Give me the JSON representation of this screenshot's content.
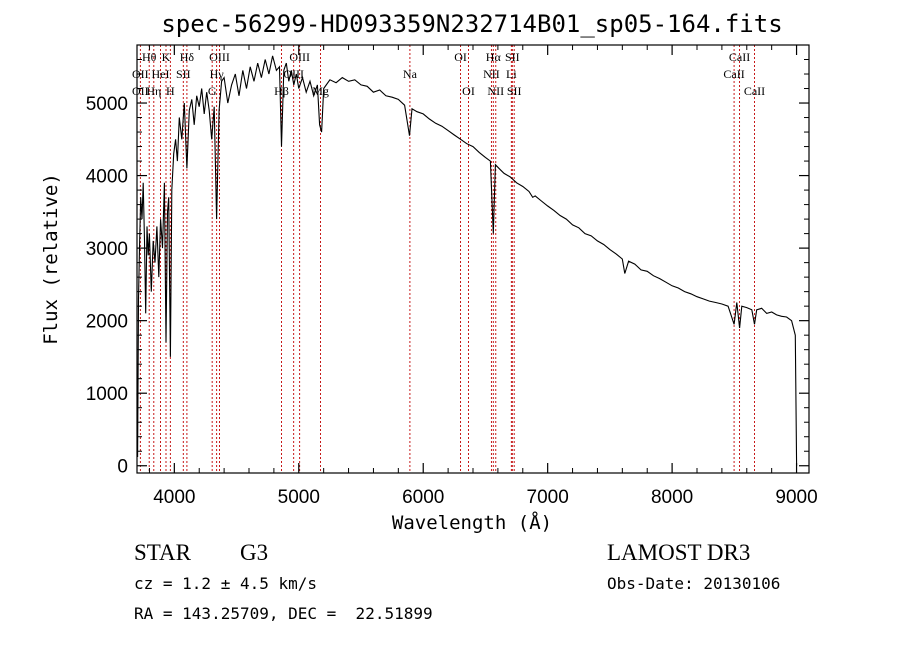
{
  "title": "spec-56299-HD093359N232714B01_sp05-164.fits",
  "colors": {
    "spectrum": "#000000",
    "line_markers": "#c00000",
    "axes": "#000000",
    "background": "#ffffff"
  },
  "chart_data": {
    "type": "line",
    "title": "spec-56299-HD093359N232714B01_sp05-164.fits",
    "xlabel": "Wavelength (Å)",
    "ylabel": "Flux (relative)",
    "xlim": [
      3700,
      9100
    ],
    "ylim": [
      -100,
      5800
    ],
    "xticks": [
      4000,
      5000,
      6000,
      7000,
      8000,
      9000
    ],
    "yticks": [
      0,
      1000,
      2000,
      3000,
      4000,
      5000
    ],
    "series": [
      {
        "name": "spectrum",
        "points": [
          [
            3700,
            1000
          ],
          [
            3705,
            120
          ],
          [
            3712,
            2300
          ],
          [
            3720,
            3000
          ],
          [
            3730,
            3700
          ],
          [
            3740,
            3400
          ],
          [
            3750,
            3900
          ],
          [
            3760,
            3100
          ],
          [
            3770,
            2100
          ],
          [
            3780,
            3300
          ],
          [
            3790,
            2900
          ],
          [
            3800,
            3200
          ],
          [
            3815,
            2400
          ],
          [
            3830,
            3100
          ],
          [
            3845,
            2800
          ],
          [
            3860,
            3300
          ],
          [
            3875,
            2600
          ],
          [
            3890,
            3400
          ],
          [
            3905,
            3000
          ],
          [
            3920,
            3900
          ],
          [
            3933,
            1700
          ],
          [
            3945,
            3500
          ],
          [
            3955,
            3700
          ],
          [
            3968,
            1500
          ],
          [
            3980,
            3800
          ],
          [
            3995,
            4300
          ],
          [
            4010,
            4500
          ],
          [
            4025,
            4200
          ],
          [
            4040,
            4800
          ],
          [
            4060,
            4500
          ],
          [
            4080,
            5000
          ],
          [
            4101,
            4100
          ],
          [
            4120,
            4900
          ],
          [
            4140,
            5050
          ],
          [
            4160,
            4700
          ],
          [
            4180,
            5100
          ],
          [
            4200,
            4950
          ],
          [
            4220,
            5200
          ],
          [
            4240,
            4850
          ],
          [
            4260,
            5150
          ],
          [
            4280,
            4900
          ],
          [
            4300,
            4500
          ],
          [
            4320,
            4950
          ],
          [
            4340,
            3400
          ],
          [
            4360,
            4900
          ],
          [
            4380,
            5300
          ],
          [
            4400,
            5350
          ],
          [
            4430,
            5000
          ],
          [
            4460,
            5250
          ],
          [
            4490,
            5400
          ],
          [
            4520,
            5100
          ],
          [
            4550,
            5450
          ],
          [
            4580,
            5200
          ],
          [
            4610,
            5500
          ],
          [
            4640,
            5300
          ],
          [
            4670,
            5550
          ],
          [
            4700,
            5350
          ],
          [
            4730,
            5600
          ],
          [
            4760,
            5400
          ],
          [
            4790,
            5650
          ],
          [
            4820,
            5450
          ],
          [
            4845,
            5500
          ],
          [
            4861,
            4400
          ],
          [
            4880,
            5450
          ],
          [
            4900,
            5550
          ],
          [
            4920,
            5300
          ],
          [
            4940,
            5450
          ],
          [
            4960,
            5250
          ],
          [
            4980,
            5400
          ],
          [
            5000,
            5200
          ],
          [
            5030,
            5350
          ],
          [
            5060,
            5150
          ],
          [
            5090,
            5300
          ],
          [
            5120,
            5100
          ],
          [
            5150,
            5250
          ],
          [
            5167,
            4700
          ],
          [
            5183,
            4600
          ],
          [
            5200,
            5200
          ],
          [
            5250,
            5320
          ],
          [
            5300,
            5280
          ],
          [
            5350,
            5350
          ],
          [
            5400,
            5300
          ],
          [
            5450,
            5320
          ],
          [
            5500,
            5250
          ],
          [
            5550,
            5230
          ],
          [
            5600,
            5150
          ],
          [
            5650,
            5180
          ],
          [
            5700,
            5100
          ],
          [
            5750,
            5080
          ],
          [
            5800,
            5050
          ],
          [
            5850,
            4970
          ],
          [
            5890,
            4550
          ],
          [
            5910,
            4920
          ],
          [
            5950,
            4880
          ],
          [
            6000,
            4850
          ],
          [
            6050,
            4780
          ],
          [
            6100,
            4720
          ],
          [
            6150,
            4680
          ],
          [
            6200,
            4620
          ],
          [
            6250,
            4560
          ],
          [
            6300,
            4500
          ],
          [
            6350,
            4440
          ],
          [
            6400,
            4400
          ],
          [
            6450,
            4320
          ],
          [
            6500,
            4250
          ],
          [
            6540,
            4200
          ],
          [
            6563,
            3200
          ],
          [
            6580,
            4150
          ],
          [
            6620,
            4080
          ],
          [
            6650,
            4030
          ],
          [
            6700,
            3980
          ],
          [
            6750,
            3900
          ],
          [
            6800,
            3850
          ],
          [
            6850,
            3780
          ],
          [
            6880,
            3700
          ],
          [
            6900,
            3720
          ],
          [
            6950,
            3650
          ],
          [
            7000,
            3580
          ],
          [
            7050,
            3520
          ],
          [
            7100,
            3450
          ],
          [
            7150,
            3400
          ],
          [
            7200,
            3320
          ],
          [
            7250,
            3280
          ],
          [
            7300,
            3200
          ],
          [
            7350,
            3170
          ],
          [
            7400,
            3100
          ],
          [
            7450,
            3050
          ],
          [
            7500,
            2980
          ],
          [
            7550,
            2920
          ],
          [
            7600,
            2850
          ],
          [
            7620,
            2650
          ],
          [
            7650,
            2820
          ],
          [
            7700,
            2780
          ],
          [
            7750,
            2700
          ],
          [
            7800,
            2680
          ],
          [
            7850,
            2620
          ],
          [
            7900,
            2580
          ],
          [
            7950,
            2530
          ],
          [
            8000,
            2480
          ],
          [
            8050,
            2450
          ],
          [
            8100,
            2400
          ],
          [
            8150,
            2370
          ],
          [
            8200,
            2330
          ],
          [
            8250,
            2300
          ],
          [
            8300,
            2270
          ],
          [
            8350,
            2250
          ],
          [
            8400,
            2230
          ],
          [
            8450,
            2200
          ],
          [
            8498,
            1950
          ],
          [
            8520,
            2250
          ],
          [
            8542,
            1900
          ],
          [
            8560,
            2200
          ],
          [
            8600,
            2180
          ],
          [
            8640,
            2150
          ],
          [
            8662,
            1950
          ],
          [
            8680,
            2150
          ],
          [
            8720,
            2170
          ],
          [
            8760,
            2100
          ],
          [
            8800,
            2120
          ],
          [
            8840,
            2080
          ],
          [
            8880,
            2060
          ],
          [
            8920,
            2050
          ],
          [
            8960,
            2000
          ],
          [
            8990,
            1800
          ],
          [
            9000,
            0
          ]
        ]
      }
    ],
    "line_markers": [
      {
        "label": "Hθ",
        "wavelength": 3798,
        "row": 1
      },
      {
        "label": "OII",
        "wavelength": 3727,
        "row": 2
      },
      {
        "label": "OII",
        "wavelength": 3727,
        "row": 3
      },
      {
        "label": "Hη",
        "wavelength": 3835,
        "row": 3
      },
      {
        "label": "K",
        "wavelength": 3933,
        "row": 1
      },
      {
        "label": "HeI",
        "wavelength": 3889,
        "row": 2
      },
      {
        "label": "SII",
        "wavelength": 4072,
        "row": 2
      },
      {
        "label": "H",
        "wavelength": 3968,
        "row": 3
      },
      {
        "label": "Hδ",
        "wavelength": 4101,
        "row": 1
      },
      {
        "label": "OIII",
        "wavelength": 4363,
        "row": 1
      },
      {
        "label": "Hγ",
        "wavelength": 4340,
        "row": 2
      },
      {
        "label": "G",
        "wavelength": 4304,
        "row": 3
      },
      {
        "label": "OIII",
        "wavelength": 5007,
        "row": 1
      },
      {
        "label": "OIII",
        "wavelength": 4959,
        "row": 2
      },
      {
        "label": "Hβ",
        "wavelength": 4861,
        "row": 3
      },
      {
        "label": "Mg",
        "wavelength": 5175,
        "row": 3
      },
      {
        "label": "Na",
        "wavelength": 5893,
        "row": 2
      },
      {
        "label": "OI",
        "wavelength": 6300,
        "row": 1
      },
      {
        "label": "OI",
        "wavelength": 6364,
        "row": 3
      },
      {
        "label": "Hα",
        "wavelength": 6563,
        "row": 1
      },
      {
        "label": "SII",
        "wavelength": 6716,
        "row": 1
      },
      {
        "label": "NII",
        "wavelength": 6548,
        "row": 2
      },
      {
        "label": "Li",
        "wavelength": 6708,
        "row": 2
      },
      {
        "label": "NII",
        "wavelength": 6583,
        "row": 3
      },
      {
        "label": "SII",
        "wavelength": 6731,
        "row": 3
      },
      {
        "label": "CaII",
        "wavelength": 8542,
        "row": 1
      },
      {
        "label": "CaII",
        "wavelength": 8498,
        "row": 2
      },
      {
        "label": "CaII",
        "wavelength": 8662,
        "row": 3
      }
    ]
  },
  "info": {
    "object_class": "STAR",
    "subclass": "G3",
    "survey": "LAMOST DR3",
    "cz": "cz = 1.2 ± 4.5 km/s",
    "obs_date": "Obs-Date: 20130106",
    "coords": "RA = 143.25709, DEC =  22.51899"
  }
}
